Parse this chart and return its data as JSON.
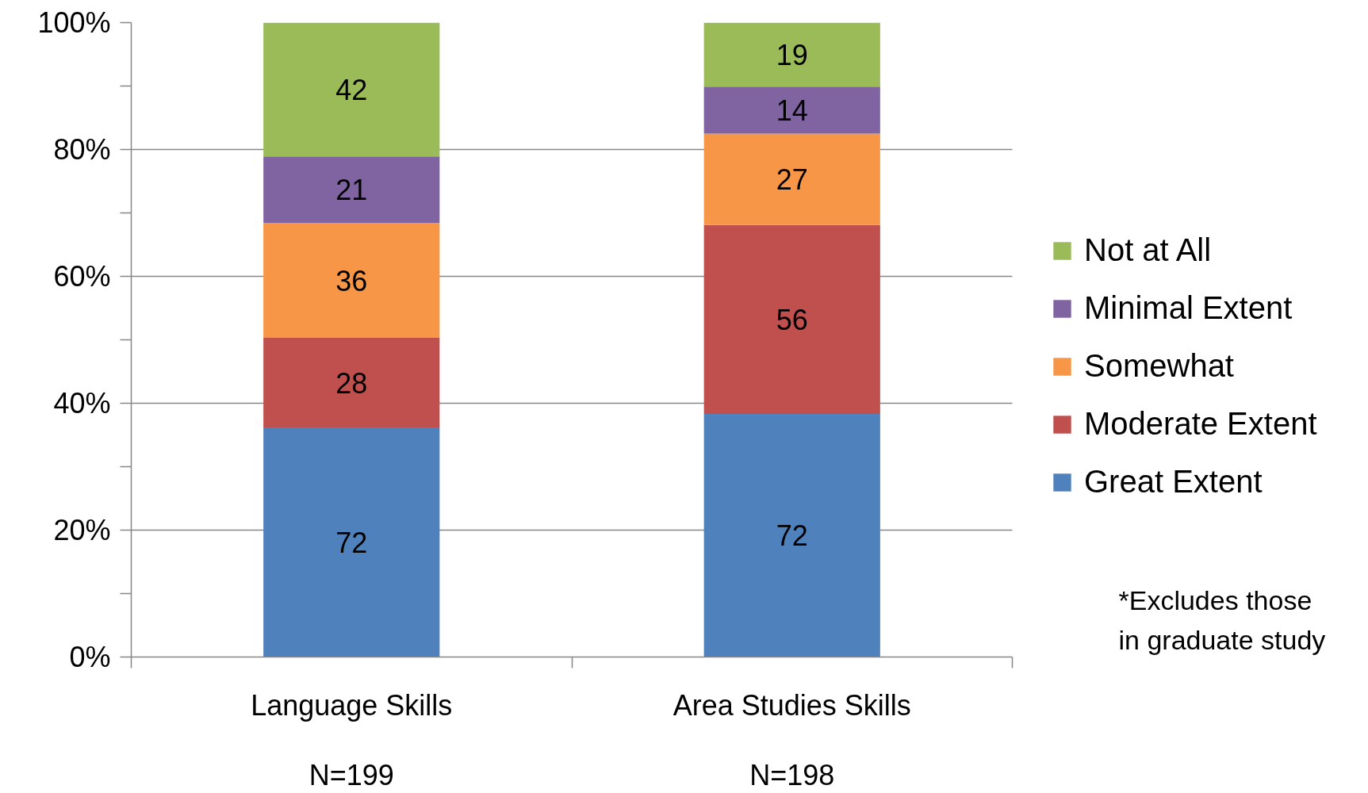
{
  "chart_data": {
    "type": "bar",
    "stacked": true,
    "categories": [
      "Language Skills",
      "Area Studies Skills"
    ],
    "series": [
      {
        "name": "Great Extent",
        "color": "#4f81bd",
        "values": [
          36.2,
          38.3
        ]
      },
      {
        "name": "Moderate Extent",
        "color": "#c0504d",
        "values": [
          14.1,
          29.8
        ]
      },
      {
        "name": "Somewhat",
        "color": "#f79646",
        "values": [
          18.1,
          14.4
        ]
      },
      {
        "name": "Minimal Extent",
        "color": "#8064a2",
        "values": [
          10.5,
          7.4
        ]
      },
      {
        "name": "Not at All",
        "color": "#9bbb59",
        "values": [
          21.1,
          10.1
        ]
      }
    ],
    "ylim": [
      0,
      100
    ],
    "yticks": [
      {
        "value": 0,
        "label": "0%"
      },
      {
        "value": 10,
        "label": null
      },
      {
        "value": 20,
        "label": "20%"
      },
      {
        "value": 30,
        "label": null
      },
      {
        "value": 40,
        "label": "40%"
      },
      {
        "value": 50,
        "label": null
      },
      {
        "value": 60,
        "label": "60%"
      },
      {
        "value": 70,
        "label": null
      },
      {
        "value": 80,
        "label": "80%"
      },
      {
        "value": 90,
        "label": null
      },
      {
        "value": 100,
        "label": "100%"
      }
    ],
    "grid": "y",
    "legend": "right",
    "annotations": [
      "72",
      "28",
      "36",
      "21",
      "42",
      "72",
      "56",
      "27",
      "14",
      "19",
      "N=199",
      "N=198",
      "*Excludes those in graduate study"
    ]
  }
}
